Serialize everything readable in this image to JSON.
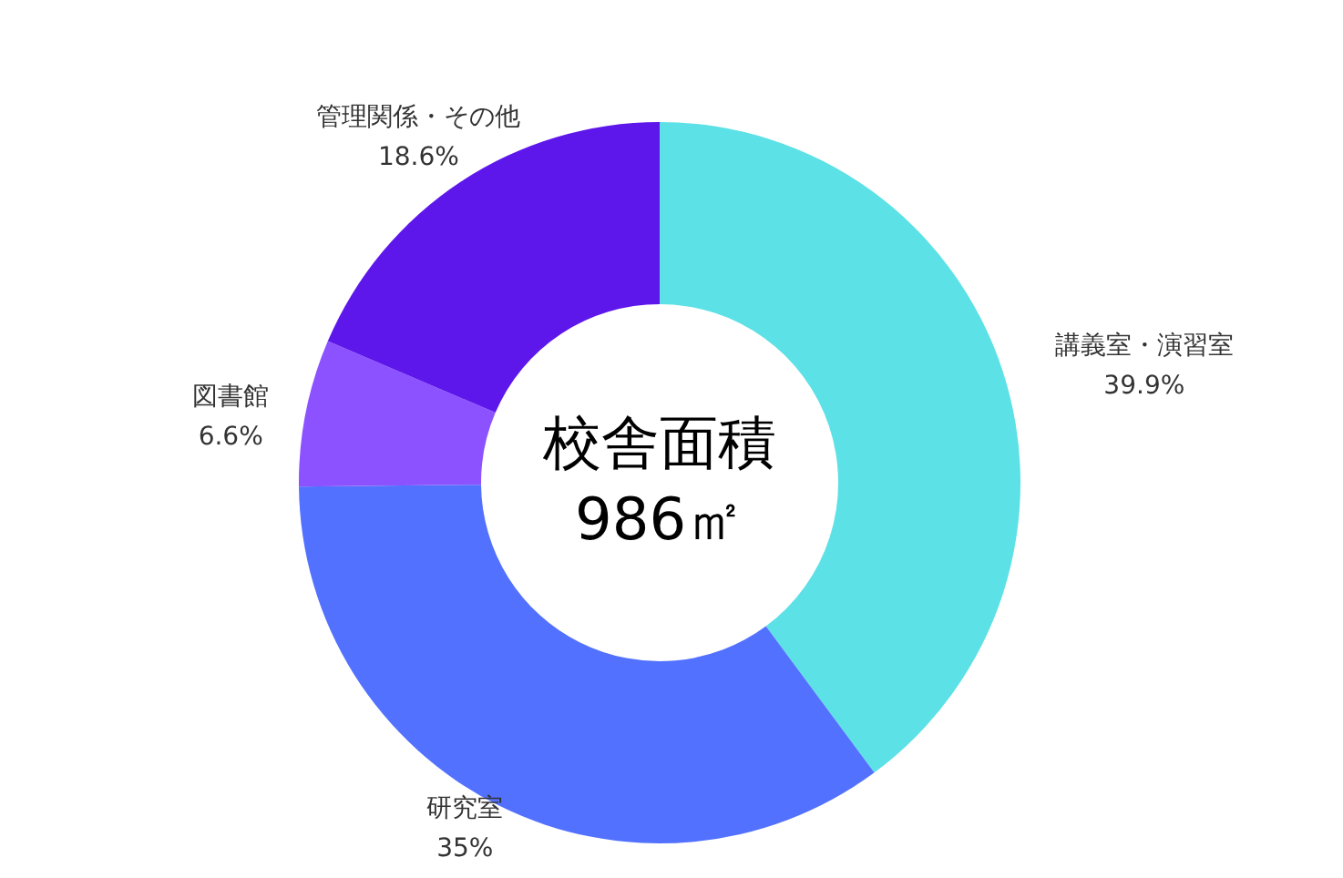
{
  "chart_data": {
    "type": "donut",
    "categories": [
      "講義室・演習室",
      "研究室",
      "図書館",
      "管理関係・その他"
    ],
    "values": [
      39.9,
      35,
      6.6,
      18.6
    ],
    "colors": [
      "#5ce1e6",
      "#5271ff",
      "#8c52ff",
      "#5e17eb"
    ],
    "value_labels": [
      "39.9%",
      "35%",
      "6.6%",
      "18.6%"
    ],
    "annotations": [
      "校舎面積",
      "986㎡"
    ]
  }
}
